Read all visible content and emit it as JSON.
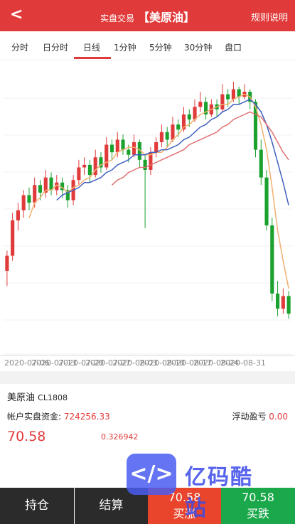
{
  "header": {
    "back": "<",
    "title_small": "实盘交易",
    "title": "【美原油】",
    "rule": "规则说明"
  },
  "tabs": [
    "分时",
    "日分时",
    "日线",
    "1分钟",
    "5分钟",
    "30分钟",
    "盘口"
  ],
  "chart_data": {
    "type": "candlestick",
    "up_color": "#e03a3a",
    "down_color": "#1aa12e",
    "ylim": [
      64.5,
      76
    ],
    "x_labels": [
      "2020-07-06",
      "2020-07-13",
      "2020-07-20",
      "2020-07-27",
      "2020-08-03",
      "2020-08-10",
      "2020-08-17",
      "2020-08-24",
      "2020-08-31"
    ],
    "candles": [
      [
        67.8,
        68.6,
        67.2,
        68.4
      ],
      [
        68.4,
        70.1,
        68.2,
        69.8
      ],
      [
        69.8,
        70.5,
        69.4,
        70.2
      ],
      [
        70.2,
        71.0,
        69.9,
        70.8
      ],
      [
        70.8,
        71.1,
        70.2,
        70.5
      ],
      [
        70.5,
        71.5,
        70.3,
        71.2
      ],
      [
        71.2,
        71.4,
        70.6,
        70.9
      ],
      [
        70.9,
        71.8,
        70.7,
        71.5
      ],
      [
        71.5,
        71.7,
        70.8,
        71.0
      ],
      [
        71.0,
        71.6,
        70.8,
        71.3
      ],
      [
        71.3,
        71.5,
        70.7,
        71.0
      ],
      [
        71.0,
        71.2,
        70.3,
        70.6
      ],
      [
        70.6,
        71.6,
        70.4,
        71.4
      ],
      [
        71.4,
        72.2,
        71.2,
        71.9
      ],
      [
        71.9,
        72.3,
        71.6,
        72.0
      ],
      [
        72.0,
        72.2,
        71.3,
        71.6
      ],
      [
        71.6,
        72.6,
        71.5,
        72.3
      ],
      [
        72.3,
        72.5,
        71.7,
        71.9
      ],
      [
        71.9,
        73.1,
        71.8,
        72.8
      ],
      [
        72.8,
        73.0,
        72.2,
        72.5
      ],
      [
        72.5,
        73.3,
        72.3,
        73.0
      ],
      [
        73.0,
        73.2,
        72.4,
        72.6
      ],
      [
        72.6,
        72.8,
        72.1,
        72.4
      ],
      [
        72.4,
        73.2,
        72.3,
        72.9
      ],
      [
        72.9,
        73.0,
        71.9,
        72.2
      ],
      [
        72.2,
        72.4,
        69.5,
        71.8
      ],
      [
        71.8,
        72.7,
        71.6,
        72.5
      ],
      [
        72.5,
        73.1,
        72.3,
        72.9
      ],
      [
        72.9,
        73.6,
        72.7,
        73.3
      ],
      [
        73.3,
        73.5,
        72.7,
        73.0
      ],
      [
        73.0,
        73.9,
        72.9,
        73.6
      ],
      [
        73.6,
        73.8,
        73.1,
        73.4
      ],
      [
        73.4,
        74.3,
        73.3,
        74.0
      ],
      [
        74.0,
        74.2,
        73.5,
        73.8
      ],
      [
        73.8,
        74.6,
        73.7,
        74.3
      ],
      [
        74.3,
        74.9,
        74.1,
        74.5
      ],
      [
        74.5,
        74.7,
        73.8,
        74.0
      ],
      [
        74.0,
        74.6,
        73.9,
        74.4
      ],
      [
        74.4,
        74.6,
        73.9,
        74.2
      ],
      [
        74.2,
        75.2,
        74.1,
        74.8
      ],
      [
        74.8,
        75.0,
        74.3,
        74.6
      ],
      [
        74.6,
        75.3,
        74.5,
        75.0
      ],
      [
        75.0,
        75.1,
        74.4,
        74.7
      ],
      [
        74.7,
        75.2,
        74.6,
        74.9
      ],
      [
        74.9,
        75.0,
        74.2,
        74.5
      ],
      [
        74.5,
        74.6,
        72.3,
        72.6
      ],
      [
        72.6,
        73.0,
        71.2,
        71.5
      ],
      [
        71.5,
        71.8,
        69.4,
        69.6
      ],
      [
        69.6,
        69.9,
        66.6,
        66.9
      ],
      [
        66.9,
        67.4,
        66.0,
        66.3
      ],
      [
        66.3,
        67.1,
        66.1,
        66.8
      ],
      [
        66.8,
        67.0,
        65.9,
        66.1
      ]
    ],
    "lines": [
      {
        "color": "#f0b070",
        "values": [
          null,
          null,
          null,
          null,
          69.9,
          70.5,
          70.7,
          71.0,
          71.0,
          71.2,
          71.1,
          70.9,
          71.1,
          71.2,
          71.4,
          71.5,
          71.8,
          72.0,
          72.1,
          72.2,
          72.5,
          72.6,
          72.7,
          72.7,
          72.6,
          72.4,
          72.4,
          72.5,
          72.5,
          72.7,
          73.0,
          73.2,
          73.5,
          73.6,
          73.8,
          74.0,
          74.1,
          74.2,
          74.3,
          74.4,
          74.4,
          74.6,
          74.7,
          74.8,
          74.7,
          74.3,
          73.6,
          72.6,
          71.1,
          69.4,
          68.2,
          67.1
        ]
      },
      {
        "color": "#4060c0",
        "values": [
          null,
          null,
          null,
          null,
          null,
          null,
          null,
          null,
          null,
          70.6,
          70.8,
          70.9,
          71.0,
          71.1,
          71.3,
          71.3,
          71.4,
          71.5,
          71.7,
          71.8,
          72.0,
          72.1,
          72.2,
          72.4,
          72.4,
          72.4,
          72.5,
          72.5,
          72.6,
          72.6,
          72.7,
          72.8,
          73.0,
          73.1,
          73.3,
          73.5,
          73.6,
          73.8,
          73.9,
          74.1,
          74.2,
          74.4,
          74.4,
          74.5,
          74.6,
          74.4,
          74.1,
          73.6,
          72.9,
          72.1,
          71.3,
          70.4
        ]
      },
      {
        "color": "#e07070",
        "values": [
          null,
          null,
          null,
          null,
          null,
          null,
          null,
          null,
          null,
          null,
          null,
          null,
          null,
          null,
          null,
          null,
          null,
          null,
          null,
          71.2,
          71.4,
          71.5,
          71.7,
          71.8,
          71.9,
          71.9,
          72.0,
          72.1,
          72.2,
          72.3,
          72.4,
          72.5,
          72.6,
          72.8,
          72.9,
          73.0,
          73.1,
          73.2,
          73.3,
          73.5,
          73.6,
          73.8,
          73.9,
          74.0,
          74.1,
          74.0,
          73.9,
          73.6,
          73.3,
          72.9,
          72.5,
          72.2
        ]
      }
    ]
  },
  "info": {
    "name": "美原油",
    "code": "CL1808",
    "fund_label": "帐户实盘资金:",
    "fund": "724256.33",
    "pnl_label": "浮动盈亏",
    "pnl": "0.00",
    "price": "70.58",
    "change": "0.326942"
  },
  "bottom": {
    "hold": "持仓",
    "settle": "结算",
    "buy_up_price": "70.58",
    "buy_up": "买涨",
    "buy_down_price": "70.58",
    "buy_down": "买跌"
  },
  "watermark": "亿码酷站"
}
